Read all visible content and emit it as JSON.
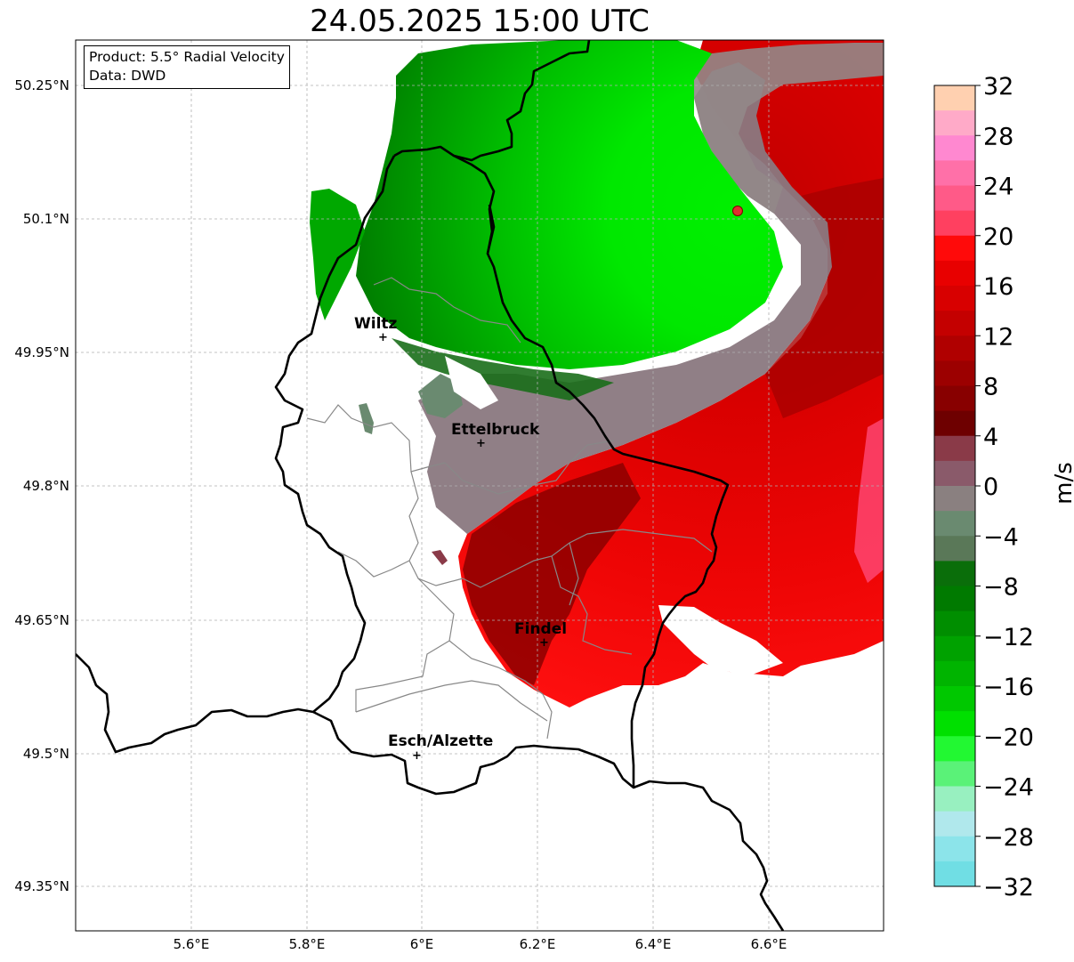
{
  "title": "24.05.2025 15:00 UTC",
  "info": {
    "product": "Product: 5.5° Radial Velocity",
    "data": "Data: DWD"
  },
  "map": {
    "lon_ticks": [
      "5.6°E",
      "5.8°E",
      "6°E",
      "6.2°E",
      "6.4°E",
      "6.6°E"
    ],
    "lat_ticks": [
      "50.25°N",
      "50.1°N",
      "49.95°N",
      "49.8°N",
      "49.65°N",
      "49.35°N",
      "49.5°N"
    ],
    "cities": [
      {
        "name": "Wiltz"
      },
      {
        "name": "Ettelbruck"
      },
      {
        "name": "Findel"
      },
      {
        "name": "Esch/Alzette"
      }
    ]
  },
  "colorbar": {
    "unit": "m/s",
    "tick_labels": [
      "32",
      "28",
      "24",
      "20",
      "16",
      "12",
      "8",
      "4",
      "0",
      "−4",
      "−8",
      "−12",
      "−16",
      "−20",
      "−24",
      "−28",
      "−32"
    ],
    "colors_top_to_bottom": [
      "#ffd0b0",
      "#ffaac8",
      "#ff88d0",
      "#ff70a8",
      "#ff5a88",
      "#ff4060",
      "#ff0a0a",
      "#e80000",
      "#d80000",
      "#c40000",
      "#b00000",
      "#9c0000",
      "#880000",
      "#6e0000",
      "#8a3a48",
      "#8a5a6a",
      "#8a8080",
      "#6a8a70",
      "#5a7858",
      "#0a6e0a",
      "#007a00",
      "#008e00",
      "#00a200",
      "#00b400",
      "#00c800",
      "#00e000",
      "#22f832",
      "#5af278",
      "#98f0c0",
      "#b0e8ec",
      "#8ce4ea",
      "#70dee4"
    ]
  },
  "colors": {
    "red_velocity": "#e00000",
    "green_velocity": "#00b400",
    "border": "#000000",
    "district": "#888888",
    "radar_site": "#e03030"
  }
}
